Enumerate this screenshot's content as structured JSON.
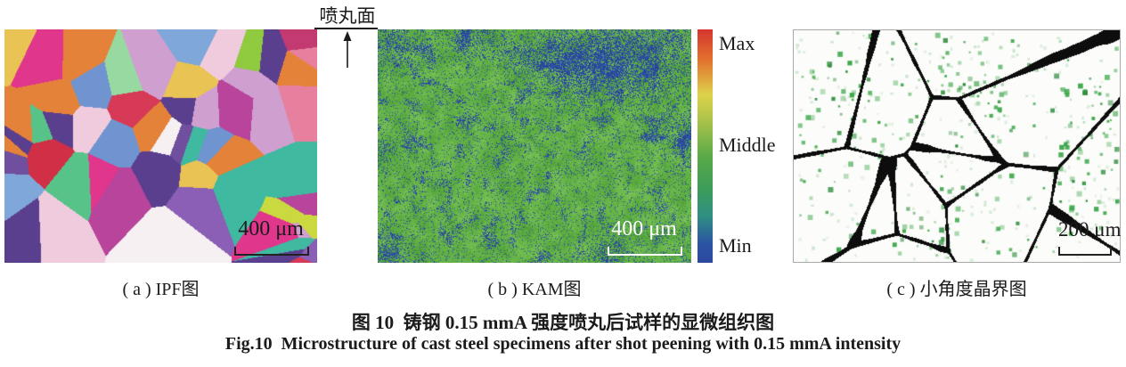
{
  "annotation": {
    "peening_surface_label": "喷丸面"
  },
  "panels": {
    "a": {
      "caption": "( a ) IPF图",
      "scale_bar": "400 μm"
    },
    "b": {
      "caption": "( b ) KAM图",
      "scale_bar": "400 μm"
    },
    "c": {
      "caption": "( c ) 小角度晶界图",
      "scale_bar": "200 μm"
    }
  },
  "colorbar": {
    "labels": {
      "max": "Max",
      "middle": "Middle",
      "min": "Min"
    },
    "stops": [
      "#d5352f 0%",
      "#e2712e 13%",
      "#ddd24b 28%",
      "#a6c14a 40%",
      "#57a948 55%",
      "#3d9d59 68%",
      "#2f8f82 80%",
      "#2b52a4 92%",
      "#2d49a0 100%"
    ]
  },
  "figure_caption": {
    "zh": "图 10  铸钢 0.15 mmA 强度喷丸后试样的显微组织图",
    "en": "Fig.10  Microstructure of cast steel specimens after shot peening with 0.15 mmA intensity"
  },
  "render": {
    "ipf_palette": [
      "#d12f45",
      "#d63a56",
      "#e0368c",
      "#cf3f9b",
      "#b8449c",
      "#6f4f9e",
      "#5b3f8f",
      "#3f3e99",
      "#4a69b8",
      "#6f94cf",
      "#7fa7d9",
      "#4db36b",
      "#57c389",
      "#97d9a0",
      "#8fca3f",
      "#c9d93f",
      "#e5823a",
      "#eac355",
      "#e77f9f",
      "#cf9fd0",
      "#f0cbdd",
      "#f7f0f2",
      "#3fb99f",
      "#8a5fb5",
      "#c23a6f"
    ],
    "kam": {
      "greens": [
        "#4c9c38",
        "#57a83e",
        "#62b146",
        "#70bb4f",
        "#7cc357"
      ],
      "blues": [
        "#27418f",
        "#2b4da1",
        "#3258ad"
      ],
      "blue_patches": [
        [
          0.62,
          0.14,
          0.12,
          0.55
        ],
        [
          0.82,
          0.12,
          0.16,
          0.5
        ],
        [
          0.04,
          0.06,
          0.09,
          0.4
        ],
        [
          0.3,
          0.03,
          0.08,
          0.35
        ],
        [
          0.99,
          0.45,
          0.08,
          0.35
        ],
        [
          0.02,
          0.97,
          0.07,
          0.4
        ],
        [
          0.75,
          0.97,
          0.07,
          0.3
        ],
        [
          0.0,
          0.5,
          0.05,
          0.3
        ],
        [
          0.45,
          0.1,
          0.06,
          0.3
        ]
      ]
    },
    "lagb": {
      "background": "#fcfcfa",
      "dot_color": "#3aa648",
      "dot_color_dark": "#2e8c3c",
      "line_color": "#0d0d0d"
    }
  }
}
